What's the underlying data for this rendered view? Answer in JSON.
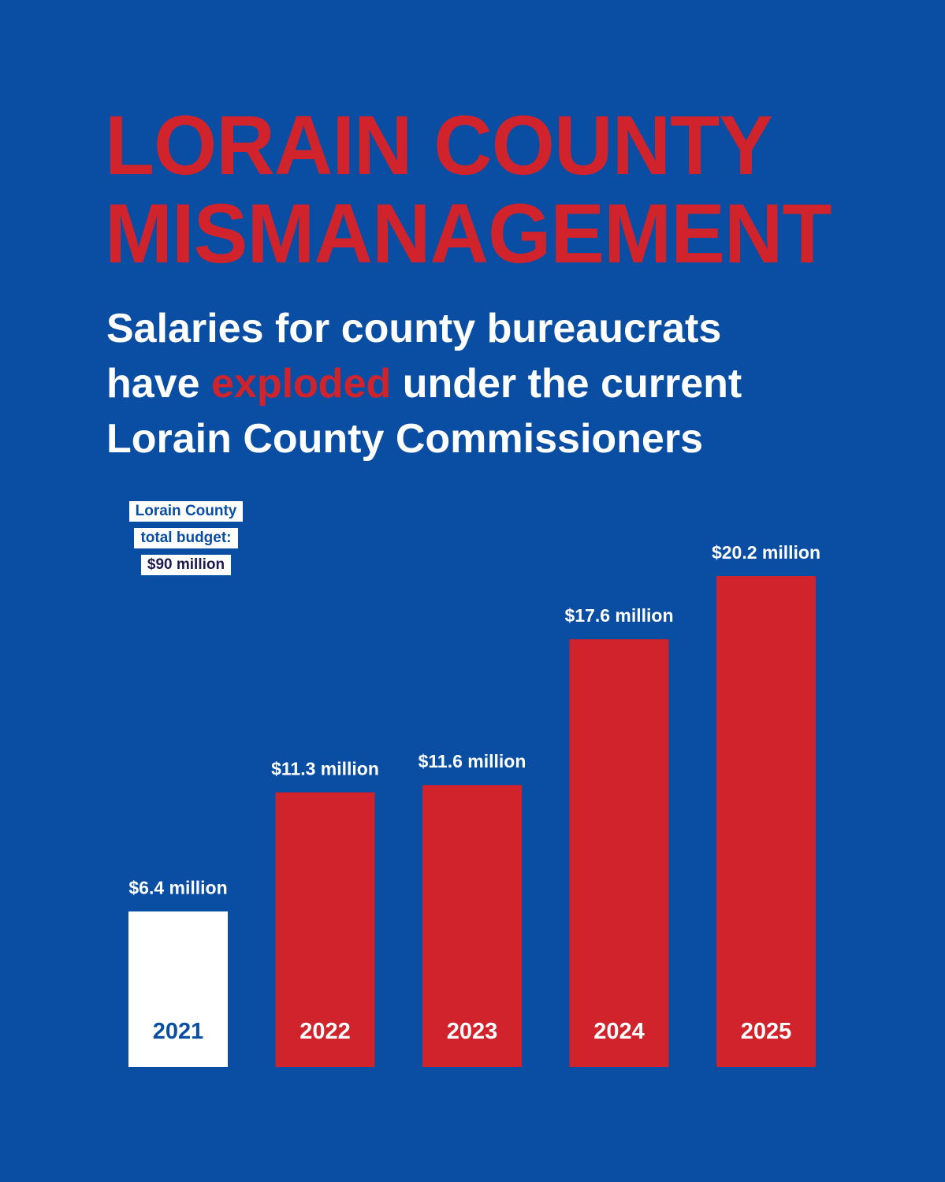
{
  "headline": {
    "line1": "LORAIN COUNTY",
    "line2": "MISMANAGEMENT"
  },
  "subhead": {
    "line1": "Salaries for county bureaucrats",
    "line2_before": "have ",
    "line2_highlight": "exploded",
    "line2_after": " under the current",
    "line3": "Lorain County Commissioners"
  },
  "budget_note": {
    "line1": "Lorain County",
    "line2": "total budget:",
    "line3": "$90 million"
  },
  "colors": {
    "background": "#0a4ea4",
    "accent_red": "#d0232b",
    "white": "#ffffff"
  },
  "chart_data": {
    "type": "bar",
    "categories": [
      "2021",
      "2022",
      "2023",
      "2024",
      "2025"
    ],
    "values": [
      6.4,
      11.3,
      11.6,
      17.6,
      20.2
    ],
    "value_labels": [
      "$6.4 million",
      "$11.3 million",
      "$11.6 million",
      "$17.6 million",
      "$20.2 million"
    ],
    "bar_colors": [
      "#ffffff",
      "#d0232b",
      "#d0232b",
      "#d0232b",
      "#d0232b"
    ],
    "category_label_colors": [
      "#0a4ea4",
      "#ffffff",
      "#ffffff",
      "#ffffff",
      "#ffffff"
    ],
    "unit": "$ million",
    "ylim": [
      0,
      20.2
    ],
    "grid": false
  }
}
